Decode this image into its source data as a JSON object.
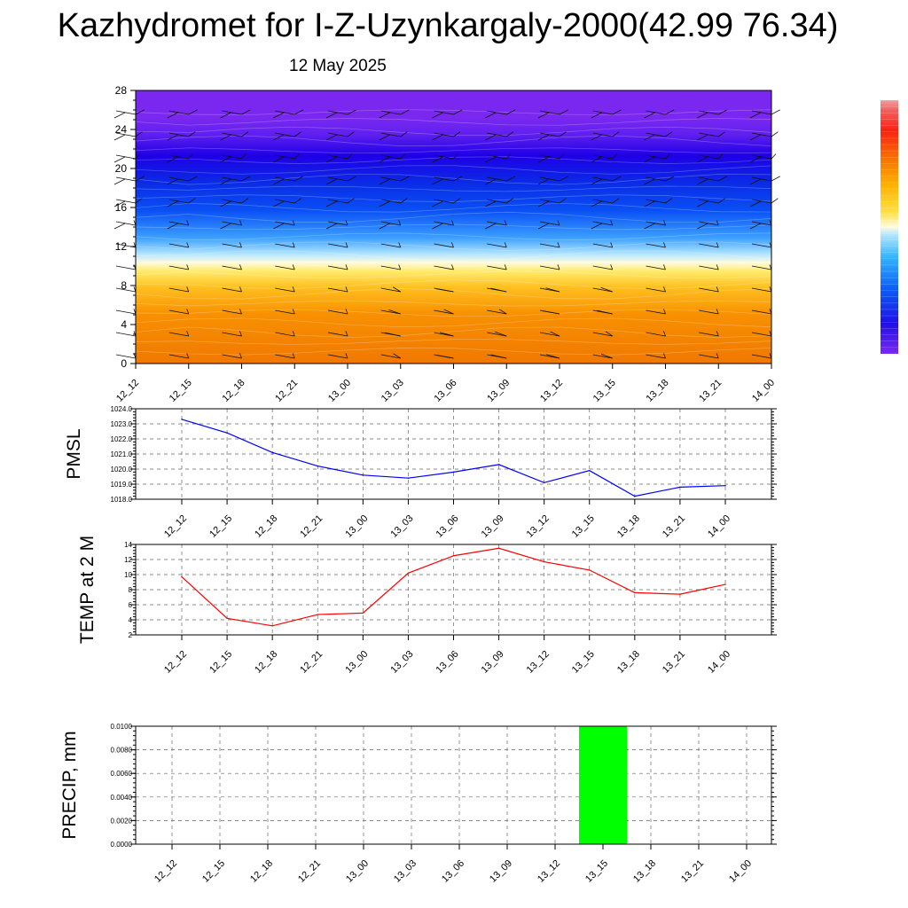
{
  "title": "Kazhydromet for I-Z-Uzynkargaly-2000(42.99 76.34)",
  "subtitle": "12 May 2025",
  "chart_data": [
    {
      "type": "heatmap",
      "panel": "cross-section",
      "x_tick_labels": [
        "12_12",
        "12_15",
        "12_18",
        "12_21",
        "13_00",
        "13_03",
        "13_06",
        "13_09",
        "13_12",
        "13_15",
        "13_18",
        "13_21",
        "14_00"
      ],
      "y_ticks": [
        0,
        4,
        8,
        12,
        16,
        20,
        24,
        28
      ],
      "ylim": [
        0,
        28
      ],
      "wind_barbs": true,
      "color_bar": true,
      "colors": [
        "#f08200",
        "#ffd200",
        "#fffbe0",
        "#3ca0ff",
        "#0a2cf0",
        "#1e00e6",
        "#7a28f0"
      ]
    },
    {
      "type": "line",
      "ylabel": "PMSL",
      "x_tick_labels": [
        "12_12",
        "12_15",
        "12_18",
        "12_21",
        "13_00",
        "13_03",
        "13_06",
        "13_09",
        "13_12",
        "13_15",
        "13_18",
        "13_21",
        "14_00"
      ],
      "y_tick_labels": [
        "1018.0",
        "1019.0",
        "1020.0",
        "1021.0",
        "1022.0",
        "1023.0",
        "1024.0"
      ],
      "ylim": [
        1018.0,
        1024.0
      ],
      "values": [
        1023.3,
        1022.4,
        1021.1,
        1020.2,
        1019.6,
        1019.4,
        1019.8,
        1020.3,
        1019.1,
        1019.9,
        1018.2,
        1018.8,
        1018.9
      ],
      "color": "#0000ff",
      "grid": true
    },
    {
      "type": "line",
      "ylabel": "TEMP at 2 M",
      "x_tick_labels": [
        "12_12",
        "12_15",
        "12_18",
        "12_21",
        "13_00",
        "13_03",
        "13_06",
        "13_09",
        "13_12",
        "13_15",
        "13_18",
        "13_21",
        "14_00"
      ],
      "y_tick_labels": [
        "2",
        "4",
        "6",
        "8",
        "10",
        "12",
        "14"
      ],
      "ylim": [
        2,
        14
      ],
      "values": [
        9.7,
        4.2,
        3.2,
        4.7,
        4.9,
        10.2,
        12.5,
        13.5,
        11.7,
        10.6,
        7.6,
        7.4,
        8.7
      ],
      "color": "#ff0000",
      "grid": true
    },
    {
      "type": "bar",
      "ylabel": "PRECIP, mm",
      "x_tick_labels": [
        "12_12",
        "12_15",
        "12_18",
        "12_21",
        "13_00",
        "13_03",
        "13_06",
        "13_09",
        "13_12",
        "13_15",
        "13_18",
        "13_21",
        "14_00"
      ],
      "y_tick_labels": [
        "0.0000",
        "0.0020",
        "0.0040",
        "0.0060",
        "0.0080",
        "0.0100"
      ],
      "ylim": [
        0,
        0.01
      ],
      "values": [
        0,
        0,
        0,
        0,
        0,
        0,
        0,
        0,
        0,
        0.01,
        0,
        0,
        0
      ],
      "color": "#00ff00",
      "grid": true
    }
  ]
}
